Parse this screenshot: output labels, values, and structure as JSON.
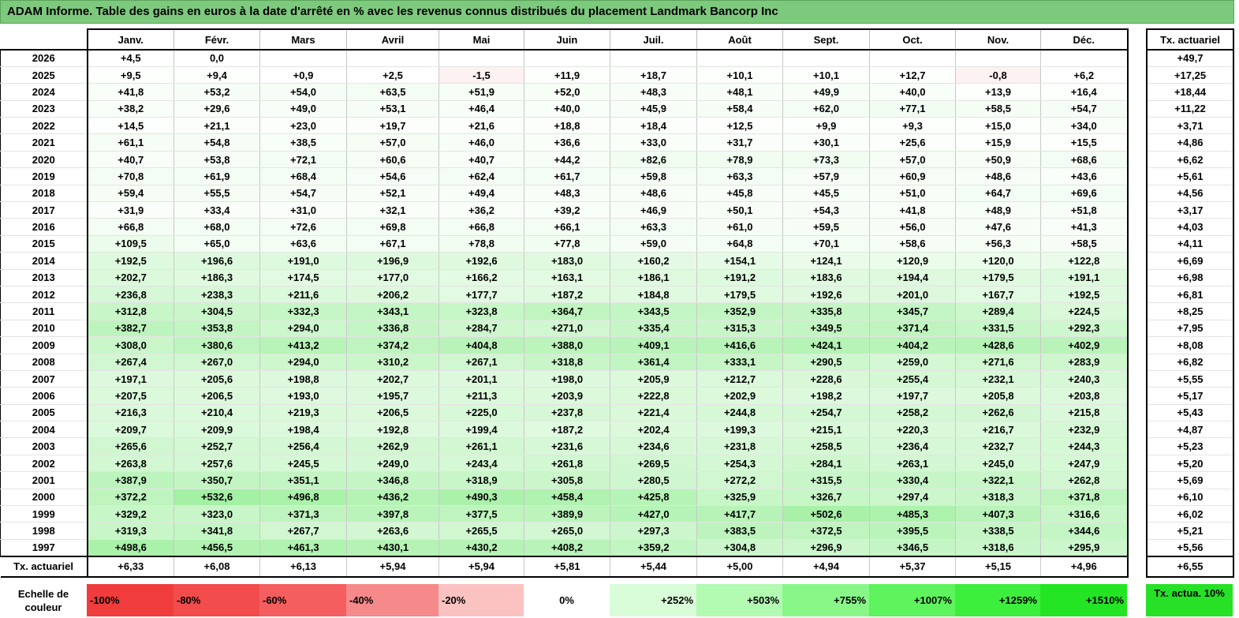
{
  "title": "ADAM Informe. Table des gains en euros à la date d'arrêté en % avec les revenus connus distribués du placement Landmark Bancorp Inc",
  "months": [
    "Janv.",
    "Févr.",
    "Mars",
    "Avril",
    "Mai",
    "Juin",
    "Juil.",
    "Août",
    "Sept.",
    "Oct.",
    "Nov.",
    "Déc."
  ],
  "actuarial_header": "Tx. actuariel",
  "rows": [
    {
      "year": "2026",
      "values": [
        "+4,5",
        "0,0",
        "",
        "",
        "",
        "",
        "",
        "",
        "",
        "",
        "",
        ""
      ],
      "tx": "+49,7"
    },
    {
      "year": "2025",
      "values": [
        "+9,5",
        "+9,4",
        "+0,9",
        "+2,5",
        "-1,5",
        "+11,9",
        "+18,7",
        "+10,1",
        "+10,1",
        "+12,7",
        "-0,8",
        "+6,2"
      ],
      "tx": "+17,25"
    },
    {
      "year": "2024",
      "values": [
        "+41,8",
        "+53,2",
        "+54,0",
        "+63,5",
        "+51,9",
        "+52,0",
        "+48,3",
        "+48,1",
        "+49,9",
        "+40,0",
        "+13,9",
        "+16,4"
      ],
      "tx": "+18,44"
    },
    {
      "year": "2023",
      "values": [
        "+38,2",
        "+29,6",
        "+49,0",
        "+53,1",
        "+46,4",
        "+40,0",
        "+45,9",
        "+58,4",
        "+62,0",
        "+77,1",
        "+58,5",
        "+54,7"
      ],
      "tx": "+11,22"
    },
    {
      "year": "2022",
      "values": [
        "+14,5",
        "+21,1",
        "+23,0",
        "+19,7",
        "+21,6",
        "+18,8",
        "+18,4",
        "+12,5",
        "+9,9",
        "+9,3",
        "+15,0",
        "+34,0"
      ],
      "tx": "+3,71"
    },
    {
      "year": "2021",
      "values": [
        "+61,1",
        "+54,8",
        "+38,5",
        "+57,0",
        "+46,0",
        "+36,6",
        "+33,0",
        "+31,7",
        "+30,1",
        "+25,6",
        "+15,9",
        "+15,5"
      ],
      "tx": "+4,86"
    },
    {
      "year": "2020",
      "values": [
        "+40,7",
        "+53,8",
        "+72,1",
        "+60,6",
        "+40,7",
        "+44,2",
        "+82,6",
        "+78,9",
        "+73,3",
        "+57,0",
        "+50,9",
        "+68,6"
      ],
      "tx": "+6,62"
    },
    {
      "year": "2019",
      "values": [
        "+70,8",
        "+61,9",
        "+68,4",
        "+54,6",
        "+62,4",
        "+61,7",
        "+59,8",
        "+63,3",
        "+57,9",
        "+60,9",
        "+48,6",
        "+43,6"
      ],
      "tx": "+5,61"
    },
    {
      "year": "2018",
      "values": [
        "+59,4",
        "+55,5",
        "+54,7",
        "+52,1",
        "+49,4",
        "+48,3",
        "+48,6",
        "+45,8",
        "+45,5",
        "+51,0",
        "+64,7",
        "+69,6"
      ],
      "tx": "+4,56"
    },
    {
      "year": "2017",
      "values": [
        "+31,9",
        "+33,4",
        "+31,0",
        "+32,1",
        "+36,2",
        "+39,2",
        "+46,9",
        "+50,1",
        "+54,3",
        "+41,8",
        "+48,9",
        "+51,8"
      ],
      "tx": "+3,17"
    },
    {
      "year": "2016",
      "values": [
        "+66,8",
        "+68,0",
        "+72,6",
        "+69,8",
        "+66,8",
        "+66,1",
        "+63,3",
        "+61,0",
        "+59,5",
        "+56,0",
        "+47,6",
        "+41,3"
      ],
      "tx": "+4,03"
    },
    {
      "year": "2015",
      "values": [
        "+109,5",
        "+65,0",
        "+63,6",
        "+67,1",
        "+78,8",
        "+77,8",
        "+59,0",
        "+64,8",
        "+70,1",
        "+58,6",
        "+56,3",
        "+58,5"
      ],
      "tx": "+4,11"
    },
    {
      "year": "2014",
      "values": [
        "+192,5",
        "+196,6",
        "+191,0",
        "+196,9",
        "+192,6",
        "+183,0",
        "+160,2",
        "+154,1",
        "+124,1",
        "+120,9",
        "+120,0",
        "+122,8"
      ],
      "tx": "+6,69"
    },
    {
      "year": "2013",
      "values": [
        "+202,7",
        "+186,3",
        "+174,5",
        "+177,0",
        "+166,2",
        "+163,1",
        "+186,1",
        "+191,2",
        "+183,6",
        "+194,4",
        "+179,5",
        "+191,1"
      ],
      "tx": "+6,98"
    },
    {
      "year": "2012",
      "values": [
        "+236,8",
        "+238,3",
        "+211,6",
        "+206,2",
        "+177,7",
        "+187,2",
        "+184,8",
        "+179,5",
        "+192,6",
        "+201,0",
        "+167,7",
        "+192,5"
      ],
      "tx": "+6,81"
    },
    {
      "year": "2011",
      "values": [
        "+312,8",
        "+304,5",
        "+332,3",
        "+343,1",
        "+323,8",
        "+364,7",
        "+343,5",
        "+352,9",
        "+335,8",
        "+345,7",
        "+289,4",
        "+224,5"
      ],
      "tx": "+8,25"
    },
    {
      "year": "2010",
      "values": [
        "+382,7",
        "+353,8",
        "+294,0",
        "+336,8",
        "+284,7",
        "+271,0",
        "+335,4",
        "+315,3",
        "+349,5",
        "+371,4",
        "+331,5",
        "+292,3"
      ],
      "tx": "+7,95"
    },
    {
      "year": "2009",
      "values": [
        "+308,0",
        "+380,6",
        "+413,2",
        "+374,2",
        "+404,8",
        "+388,0",
        "+409,1",
        "+416,6",
        "+424,1",
        "+404,2",
        "+428,6",
        "+402,9"
      ],
      "tx": "+8,08"
    },
    {
      "year": "2008",
      "values": [
        "+267,4",
        "+267,0",
        "+294,0",
        "+310,2",
        "+267,1",
        "+318,8",
        "+361,4",
        "+333,1",
        "+290,5",
        "+259,0",
        "+271,6",
        "+283,9"
      ],
      "tx": "+6,82"
    },
    {
      "year": "2007",
      "values": [
        "+197,1",
        "+205,6",
        "+198,8",
        "+202,7",
        "+201,1",
        "+198,0",
        "+205,9",
        "+212,7",
        "+228,6",
        "+255,4",
        "+232,1",
        "+240,3"
      ],
      "tx": "+5,55"
    },
    {
      "year": "2006",
      "values": [
        "+207,5",
        "+206,5",
        "+193,0",
        "+195,7",
        "+211,3",
        "+203,9",
        "+222,8",
        "+202,9",
        "+198,2",
        "+197,7",
        "+205,8",
        "+203,8"
      ],
      "tx": "+5,17"
    },
    {
      "year": "2005",
      "values": [
        "+216,3",
        "+210,4",
        "+219,3",
        "+206,5",
        "+225,0",
        "+237,8",
        "+221,4",
        "+244,8",
        "+254,7",
        "+258,2",
        "+262,6",
        "+215,8"
      ],
      "tx": "+5,43"
    },
    {
      "year": "2004",
      "values": [
        "+209,7",
        "+209,9",
        "+198,4",
        "+192,8",
        "+199,4",
        "+187,2",
        "+202,4",
        "+199,3",
        "+215,1",
        "+220,3",
        "+216,7",
        "+232,9"
      ],
      "tx": "+4,87"
    },
    {
      "year": "2003",
      "values": [
        "+265,6",
        "+252,7",
        "+256,4",
        "+262,9",
        "+261,1",
        "+231,6",
        "+234,6",
        "+231,8",
        "+258,5",
        "+236,4",
        "+232,7",
        "+244,3"
      ],
      "tx": "+5,23"
    },
    {
      "year": "2002",
      "values": [
        "+263,8",
        "+257,6",
        "+245,5",
        "+249,0",
        "+243,4",
        "+261,8",
        "+269,5",
        "+254,3",
        "+284,1",
        "+263,1",
        "+245,0",
        "+247,9"
      ],
      "tx": "+5,20"
    },
    {
      "year": "2001",
      "values": [
        "+387,9",
        "+350,7",
        "+351,1",
        "+346,8",
        "+318,9",
        "+305,8",
        "+280,5",
        "+272,2",
        "+315,5",
        "+330,4",
        "+322,1",
        "+262,8"
      ],
      "tx": "+5,69"
    },
    {
      "year": "2000",
      "values": [
        "+372,2",
        "+532,6",
        "+496,8",
        "+436,2",
        "+490,3",
        "+458,4",
        "+425,8",
        "+325,9",
        "+326,7",
        "+297,4",
        "+318,3",
        "+371,8"
      ],
      "tx": "+6,10"
    },
    {
      "year": "1999",
      "values": [
        "+329,2",
        "+323,0",
        "+371,3",
        "+397,8",
        "+377,5",
        "+389,9",
        "+427,0",
        "+417,7",
        "+502,6",
        "+485,3",
        "+407,3",
        "+316,6"
      ],
      "tx": "+6,02"
    },
    {
      "year": "1998",
      "values": [
        "+319,3",
        "+341,8",
        "+267,7",
        "+263,6",
        "+265,5",
        "+265,0",
        "+297,3",
        "+383,5",
        "+372,5",
        "+395,5",
        "+338,5",
        "+344,6"
      ],
      "tx": "+5,21"
    },
    {
      "year": "1997",
      "values": [
        "+498,6",
        "+456,5",
        "+461,3",
        "+430,1",
        "+430,2",
        "+408,2",
        "+359,2",
        "+304,8",
        "+296,9",
        "+346,5",
        "+318,6",
        "+295,9"
      ],
      "tx": "+5,56"
    }
  ],
  "footer": {
    "label": "Tx. actuariel",
    "values": [
      "+6,33",
      "+6,08",
      "+6,13",
      "+5,94",
      "+5,94",
      "+5,81",
      "+5,44",
      "+5,00",
      "+4,94",
      "+5,37",
      "+5,15",
      "+4,96"
    ],
    "tx": "+6,55"
  },
  "color_scale": {
    "label": "Echelle de couleur",
    "steps": [
      {
        "label": "-100%",
        "color": "#f03c3c"
      },
      {
        "label": "-80%",
        "color": "#f24c4c"
      },
      {
        "label": "-60%",
        "color": "#f45e5e"
      },
      {
        "label": "-40%",
        "color": "#f68a8a"
      },
      {
        "label": "-20%",
        "color": "#fbc2c2"
      },
      {
        "label": "0%",
        "color": "#ffffff"
      },
      {
        "label": "+252%",
        "color": "#d9fdd9"
      },
      {
        "label": "+503%",
        "color": "#b3fab3"
      },
      {
        "label": "+755%",
        "color": "#88f788"
      },
      {
        "label": "+1007%",
        "color": "#5df45d"
      },
      {
        "label": "+1259%",
        "color": "#3def3d"
      },
      {
        "label": "+1510%",
        "color": "#24e524"
      }
    ],
    "actuarial_legend": "Tx. actua. 10%"
  },
  "colors": {
    "title_bg": "#7dc97d",
    "negative_cell": "#fdf1f1"
  }
}
